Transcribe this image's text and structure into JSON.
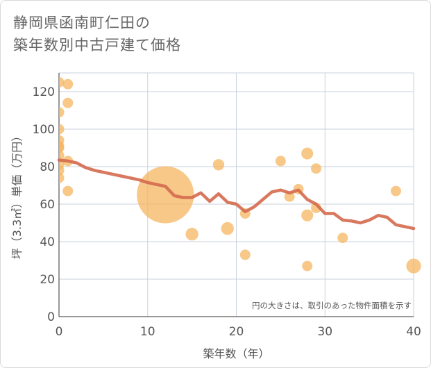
{
  "title_line1": "静岡県函南町仁田の",
  "title_line2": "築年数別中古戸建て価格",
  "chart_data": {
    "type": "scatter",
    "title": "静岡県函南町仁田の築年数別中古戸建て価格",
    "xlabel": "築年数（年）",
    "ylabel": "坪（3.3㎡）単価（万円）",
    "xlim": [
      0,
      40
    ],
    "ylim": [
      0,
      130
    ],
    "xticks": [
      0,
      10,
      20,
      30,
      40
    ],
    "yticks": [
      0,
      20,
      40,
      60,
      80,
      100,
      120
    ],
    "grid": true,
    "annotation": "円の大きさは、取引のあった物件面積を示す",
    "colors": {
      "points": "#f5b35c",
      "trend": "#d4694e",
      "grid": "#c9d2dc"
    },
    "points": [
      {
        "x": 0,
        "y": 125,
        "size": 1
      },
      {
        "x": 0,
        "y": 109,
        "size": 1
      },
      {
        "x": 0,
        "y": 100,
        "size": 1
      },
      {
        "x": 0,
        "y": 94,
        "size": 1
      },
      {
        "x": 0,
        "y": 91,
        "size": 1
      },
      {
        "x": 0,
        "y": 90,
        "size": 1
      },
      {
        "x": 0,
        "y": 86,
        "size": 1
      },
      {
        "x": 0,
        "y": 81,
        "size": 1
      },
      {
        "x": 0,
        "y": 78,
        "size": 1
      },
      {
        "x": 0,
        "y": 74,
        "size": 1
      },
      {
        "x": 1,
        "y": 124,
        "size": 1
      },
      {
        "x": 1,
        "y": 114,
        "size": 1
      },
      {
        "x": 1,
        "y": 83,
        "size": 1
      },
      {
        "x": 1,
        "y": 67,
        "size": 1
      },
      {
        "x": 12,
        "y": 65,
        "size": 30
      },
      {
        "x": 15,
        "y": 44,
        "size": 1.5
      },
      {
        "x": 18,
        "y": 81,
        "size": 1.2
      },
      {
        "x": 19,
        "y": 47,
        "size": 1.5
      },
      {
        "x": 21,
        "y": 55,
        "size": 1
      },
      {
        "x": 21,
        "y": 33,
        "size": 1
      },
      {
        "x": 25,
        "y": 83,
        "size": 1
      },
      {
        "x": 26,
        "y": 64,
        "size": 1
      },
      {
        "x": 27,
        "y": 68,
        "size": 1
      },
      {
        "x": 28,
        "y": 87,
        "size": 1.3
      },
      {
        "x": 28,
        "y": 54,
        "size": 1.3
      },
      {
        "x": 28,
        "y": 27,
        "size": 1
      },
      {
        "x": 29,
        "y": 79,
        "size": 1
      },
      {
        "x": 29,
        "y": 58,
        "size": 1
      },
      {
        "x": 32,
        "y": 42,
        "size": 1
      },
      {
        "x": 38,
        "y": 67,
        "size": 1
      },
      {
        "x": 40,
        "y": 27,
        "size": 2
      }
    ],
    "trend": {
      "x": [
        0,
        1,
        2,
        3,
        4,
        5,
        6,
        7,
        8,
        9,
        10,
        11,
        12,
        13,
        14,
        15,
        16,
        17,
        18,
        19,
        20,
        21,
        22,
        23,
        24,
        25,
        26,
        27,
        28,
        29,
        30,
        31,
        32,
        33,
        34,
        35,
        36,
        37,
        38,
        39,
        40
      ],
      "y": [
        83.5,
        83,
        82,
        79.5,
        78,
        77,
        76,
        75,
        74,
        73,
        71.5,
        70.5,
        69.5,
        64.5,
        63.5,
        63.5,
        66,
        61.5,
        65.5,
        61,
        60,
        56,
        58.5,
        62.5,
        66.5,
        67.5,
        66,
        67.5,
        62.5,
        60,
        55,
        55,
        51.5,
        51,
        50,
        51.5,
        54,
        53,
        49,
        48,
        47
      ]
    }
  }
}
